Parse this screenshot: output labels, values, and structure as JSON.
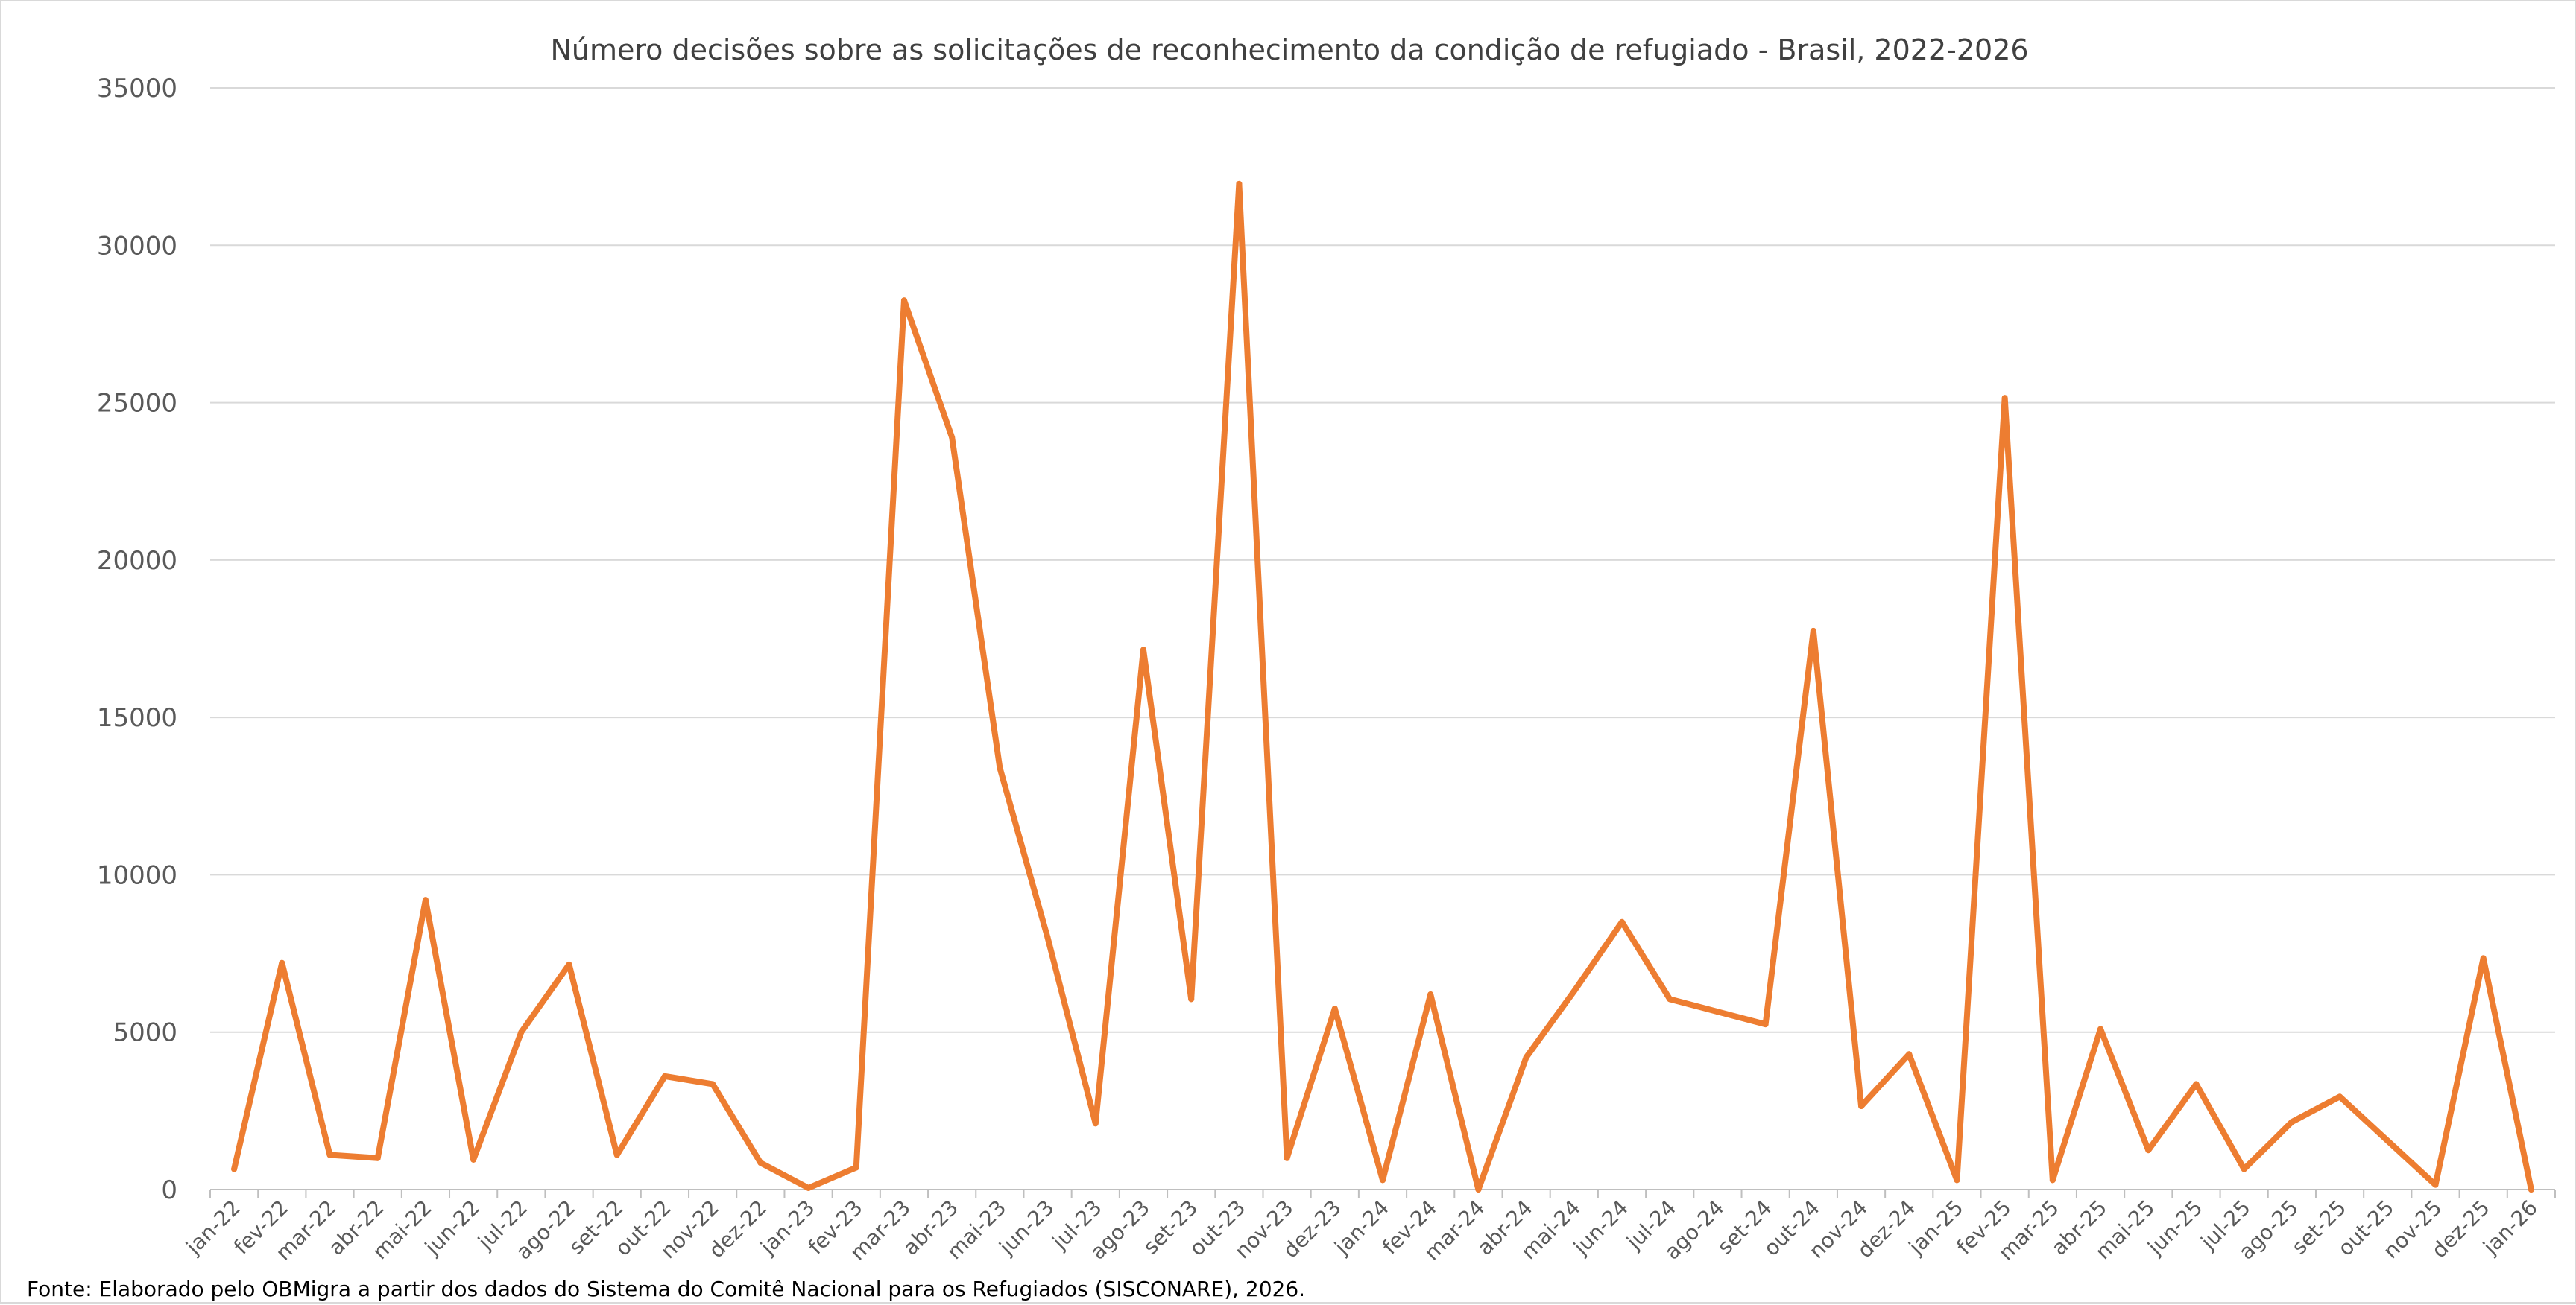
{
  "chart_data": {
    "type": "line",
    "title": "Número decisões sobre as solicitações de reconhecimento da condição de refugiado - Brasil, 2022-2026",
    "xlabel": "",
    "ylabel": "",
    "ylim": [
      0,
      35000
    ],
    "yticks": [
      0,
      5000,
      10000,
      15000,
      20000,
      25000,
      30000,
      35000
    ],
    "grid": true,
    "legend": "none",
    "categories": [
      "jan-22",
      "fev-22",
      "mar-22",
      "abr-22",
      "mai-22",
      "jun-22",
      "jul-22",
      "ago-22",
      "set-22",
      "out-22",
      "nov-22",
      "dez-22",
      "jan-23",
      "fev-23",
      "mar-23",
      "abr-23",
      "mai-23",
      "jun-23",
      "jul-23",
      "ago-23",
      "set-23",
      "out-23",
      "nov-23",
      "dez-23",
      "jan-24",
      "fev-24",
      "mar-24",
      "abr-24",
      "mai-24",
      "jun-24",
      "jul-24",
      "ago-24",
      "set-24",
      "out-24",
      "nov-24",
      "dez-24",
      "jan-25",
      "fev-25",
      "mar-25",
      "abr-25",
      "mai-25",
      "jun-25",
      "jul-25",
      "ago-25",
      "set-25",
      "out-25",
      "nov-25",
      "dez-25",
      "jan-26"
    ],
    "series": [
      {
        "name": "Decisões",
        "color": "#ed7d31",
        "values": [
          650,
          7200,
          1100,
          1000,
          9200,
          950,
          5000,
          7150,
          1100,
          3600,
          3350,
          850,
          50,
          700,
          28250,
          23900,
          13400,
          8000,
          2100,
          17150,
          6050,
          31950,
          1000,
          5750,
          300,
          6200,
          0,
          4200,
          6300,
          8500,
          6050,
          5650,
          5250,
          17750,
          2650,
          4300,
          300,
          25150,
          300,
          5100,
          1250,
          3350,
          650,
          2150,
          2950,
          1550,
          150,
          7350,
          0
        ]
      }
    ]
  },
  "source_note": "Fonte: Elaborado pelo OBMigra a partir dos dados  do Sistema do Comitê Nacional para os Refugiados (SISCONARE), 2026."
}
